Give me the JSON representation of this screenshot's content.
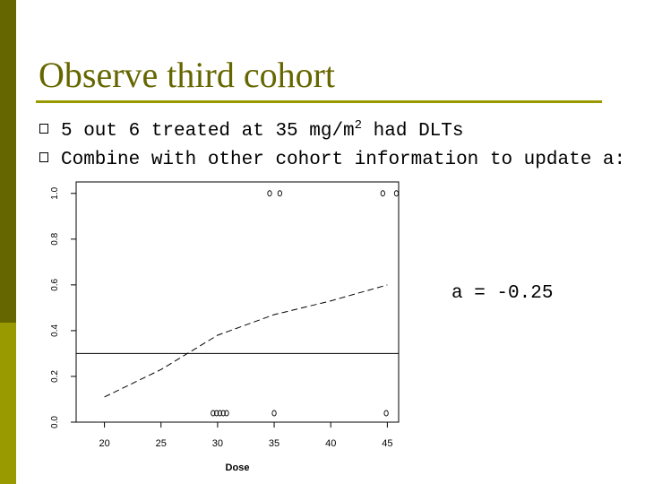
{
  "slide": {
    "title": "Observe third cohort",
    "bullets": [
      {
        "pre": "5 out 6 treated at 35 mg/m",
        "sup": "2",
        "post": " had DLTs"
      },
      {
        "pre": "Combine with other cohort information to update a:",
        "sup": "",
        "post": ""
      }
    ],
    "equation": "a = -0.25"
  },
  "colors": {
    "bar_dark": "#666600",
    "bar_light": "#999900",
    "title": "#666600"
  },
  "chart_data": {
    "type": "line",
    "xlabel": "Dose",
    "ylabel": "",
    "xlim": [
      17.5,
      46
    ],
    "ylim": [
      0,
      1.05
    ],
    "x_ticks": [
      "20",
      "25",
      "30",
      "35",
      "40",
      "45"
    ],
    "y_ticks": [
      "0.0",
      "0.2",
      "0.4",
      "0.6",
      "0.8",
      "1.0"
    ],
    "series": [
      {
        "style": "dashed",
        "x": [
          20,
          25,
          30,
          35,
          40,
          45
        ],
        "y": [
          0.11,
          0.23,
          0.38,
          0.47,
          0.53,
          0.6
        ]
      }
    ],
    "hline": 0.3,
    "points": [
      {
        "x": 29.6,
        "y": 0
      },
      {
        "x": 29.9,
        "y": 0
      },
      {
        "x": 30.2,
        "y": 0
      },
      {
        "x": 30.5,
        "y": 0
      },
      {
        "x": 30.8,
        "y": 0
      },
      {
        "x": 35,
        "y": 0
      },
      {
        "x": 44.9,
        "y": 0
      },
      {
        "x": 34.6,
        "y": 1
      },
      {
        "x": 35.5,
        "y": 1
      },
      {
        "x": 44.6,
        "y": 1
      },
      {
        "x": 45.8,
        "y": 1
      }
    ],
    "grid": false
  }
}
